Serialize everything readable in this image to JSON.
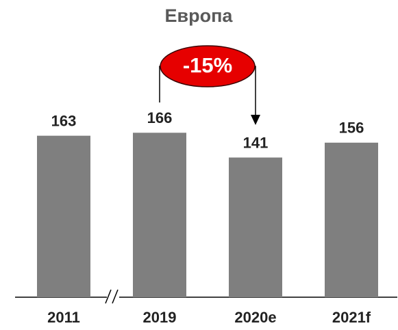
{
  "chart_data": {
    "type": "bar",
    "title": "Европа",
    "categories": [
      "2011",
      "2019",
      "2020e",
      "2021f"
    ],
    "values": [
      163,
      166,
      141,
      156
    ],
    "color": "#7f7f7f",
    "ylim": [
      0,
      180
    ],
    "annotation": "-15%"
  }
}
